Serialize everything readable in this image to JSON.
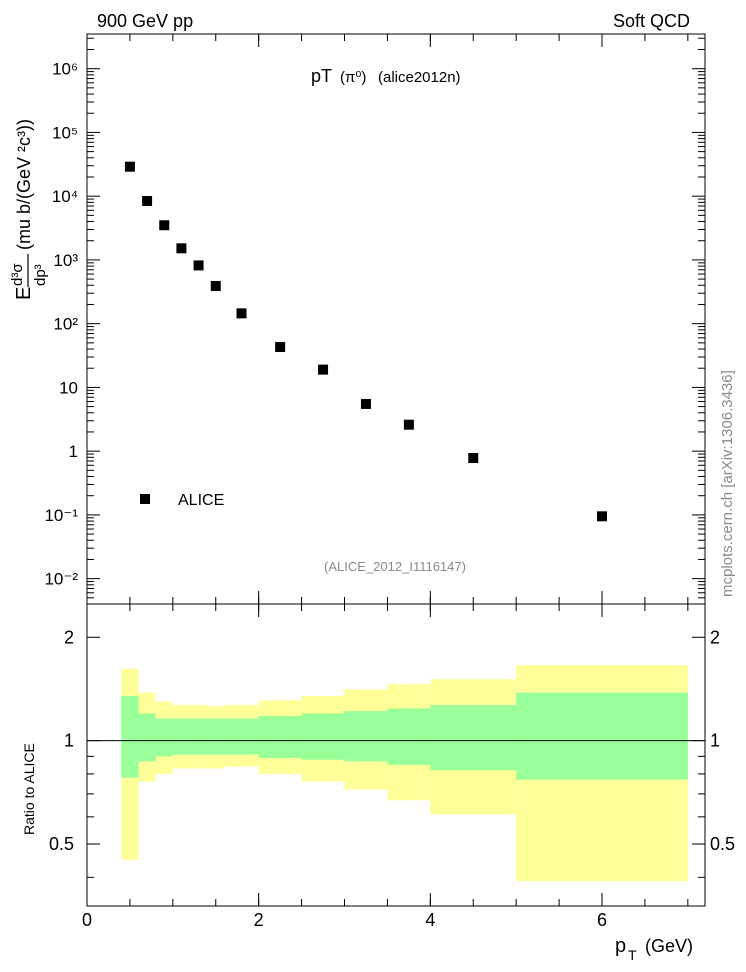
{
  "header": {
    "energy": "900 GeV pp",
    "process": "Soft QCD"
  },
  "side_note": "mcplots.cern.ch [arXiv:1306.3436]",
  "chart_data": [
    {
      "type": "scatter",
      "title_main": "pT",
      "title_particle": "(π⁰)",
      "title_tag": "(alice2012n)",
      "ylabel": "E d³σ/dp³ (mu b/(GeV ²c³))",
      "ylabel_parts": {
        "E": "E",
        "num": "d³σ",
        "den": "dp³",
        "units": "(mu b/(GeV ²c³))"
      },
      "yscale": "log",
      "ylim": [
        0.004,
        3500000
      ],
      "y_tick_labels": [
        "10⁻²",
        "10⁻¹",
        "1",
        "10",
        "10²",
        "10³",
        "10⁴",
        "10⁵",
        "10⁶"
      ],
      "xlim": [
        0,
        7.2
      ],
      "series": [
        {
          "name": "ALICE",
          "marker": "square",
          "color": "#000000",
          "x": [
            0.5,
            0.7,
            0.9,
            1.1,
            1.3,
            1.5,
            1.8,
            2.25,
            2.75,
            3.25,
            3.75,
            4.5,
            6.0
          ],
          "y": [
            29000,
            8400,
            3500,
            1520,
            820,
            390,
            145,
            43,
            19,
            5.5,
            2.6,
            0.78,
            0.095
          ]
        }
      ],
      "legend": "bottom-left",
      "reference": "(ALICE_2012_I1116147)"
    },
    {
      "type": "area",
      "ylabel": "Ratio to ALICE",
      "xlabel": "p",
      "xlabel_sub": "T",
      "xlabel_units": "(GeV)",
      "xlim": [
        0,
        7.2
      ],
      "ylim": [
        0.33,
        2.5
      ],
      "yscale": "log",
      "x_ticks": [
        0,
        2,
        4,
        6
      ],
      "x_tick_labels": [
        "0",
        "2",
        "4",
        "6"
      ],
      "y_ticks": [
        0.5,
        1,
        2
      ],
      "y_tick_labels": [
        "0.5",
        "1",
        "2"
      ],
      "reference_line": 1,
      "bands": {
        "edges": [
          0.4,
          0.6,
          0.8,
          1.0,
          1.2,
          1.4,
          1.6,
          2.0,
          2.5,
          3.0,
          3.5,
          4.0,
          5.0,
          7.0
        ],
        "yellow_color": "#ffff99",
        "green_color": "#99ff99",
        "yellow_low": [
          0.45,
          0.76,
          0.8,
          0.83,
          0.83,
          0.83,
          0.84,
          0.8,
          0.76,
          0.72,
          0.67,
          0.61,
          0.39
        ],
        "yellow_high": [
          1.62,
          1.38,
          1.3,
          1.27,
          1.27,
          1.26,
          1.27,
          1.31,
          1.35,
          1.41,
          1.46,
          1.51,
          1.66
        ],
        "green_low": [
          0.78,
          0.87,
          0.9,
          0.91,
          0.91,
          0.91,
          0.91,
          0.89,
          0.88,
          0.87,
          0.85,
          0.82,
          0.77
        ],
        "green_high": [
          1.35,
          1.2,
          1.16,
          1.16,
          1.16,
          1.16,
          1.16,
          1.18,
          1.2,
          1.22,
          1.24,
          1.27,
          1.38
        ]
      }
    }
  ]
}
